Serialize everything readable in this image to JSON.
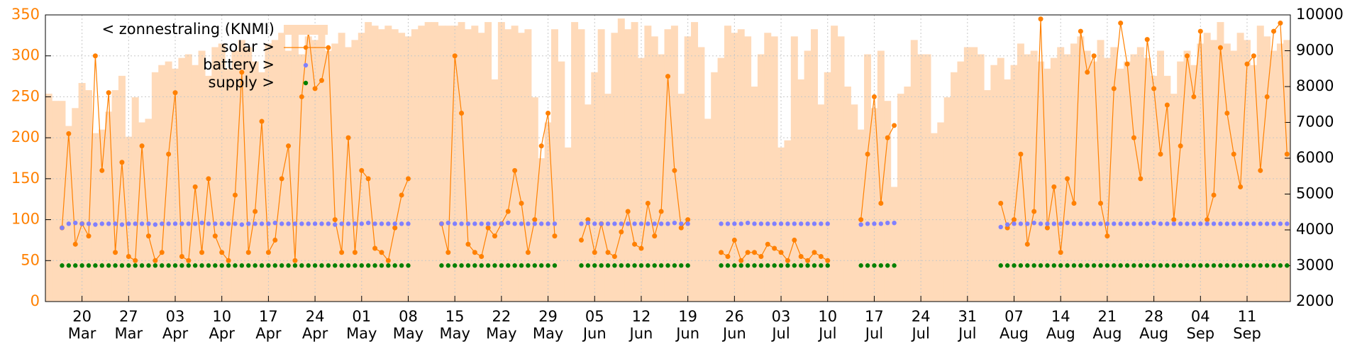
{
  "chart_data": {
    "type": "line",
    "categories": [
      null,
      null,
      null,
      null,
      null,
      "20 Mar",
      null,
      null,
      null,
      null,
      null,
      null,
      "27 Mar",
      null,
      null,
      null,
      null,
      null,
      null,
      "03 Apr",
      null,
      null,
      null,
      null,
      null,
      null,
      "10 Apr",
      null,
      null,
      null,
      null,
      null,
      null,
      "17 Apr",
      null,
      null,
      null,
      null,
      null,
      null,
      "24 Apr",
      null,
      null,
      null,
      null,
      null,
      null,
      "01 May",
      null,
      null,
      null,
      null,
      null,
      null,
      "08 May",
      null,
      null,
      null,
      null,
      null,
      null,
      "15 May",
      null,
      null,
      null,
      null,
      null,
      null,
      "22 May",
      null,
      null,
      null,
      null,
      null,
      null,
      "29 May",
      null,
      null,
      null,
      null,
      null,
      null,
      "05 Jun",
      null,
      null,
      null,
      null,
      null,
      null,
      "12 Jun",
      null,
      null,
      null,
      null,
      null,
      null,
      "19 Jun",
      null,
      null,
      null,
      null,
      null,
      null,
      "26 Jun",
      null,
      null,
      null,
      null,
      null,
      null,
      "03 Jul",
      null,
      null,
      null,
      null,
      null,
      null,
      "10 Jul",
      null,
      null,
      null,
      null,
      null,
      null,
      "17 Jul",
      null,
      null,
      null,
      null,
      null,
      null,
      "24 Jul",
      null,
      null,
      null,
      null,
      null,
      null,
      "31 Jul",
      null,
      null,
      null,
      null,
      null,
      null,
      "07 Aug",
      null,
      null,
      null,
      null,
      null,
      null,
      "14 Aug",
      null,
      null,
      null,
      null,
      null,
      null,
      "21 Aug",
      null,
      null,
      null,
      null,
      null,
      null,
      "28 Aug",
      null,
      null,
      null,
      null,
      null,
      null,
      "04 Sep",
      null,
      null,
      null,
      null,
      null,
      null,
      "11 Sep",
      null,
      null,
      null,
      null,
      null,
      null
    ],
    "series": [
      {
        "name": "< zonnestraling (KNMI)",
        "kind": "area",
        "axis": "y2",
        "color": "#ffdab9",
        "values": [
          7800,
          7600,
          7600,
          6900,
          7400,
          8100,
          7900,
          6700,
          6800,
          7300,
          7900,
          8300,
          6600,
          7700,
          7000,
          7100,
          8400,
          8600,
          8700,
          8500,
          8800,
          8900,
          8600,
          9000,
          8300,
          9100,
          9200,
          8500,
          9000,
          9300,
          9100,
          8700,
          8400,
          9200,
          9300,
          9500,
          9000,
          9600,
          8900,
          9400,
          9300,
          9600,
          9000,
          9200,
          9500,
          9100,
          9300,
          9500,
          9800,
          9700,
          9600,
          9700,
          9600,
          9500,
          9400,
          9600,
          9700,
          9800,
          9800,
          9700,
          9700,
          9700,
          9800,
          9600,
          9700,
          9500,
          9800,
          8200,
          9800,
          9600,
          9700,
          9500,
          9600,
          7700,
          6000,
          7000,
          9600,
          8700,
          6300,
          9800,
          9600,
          7500,
          8400,
          9600,
          7800,
          9500,
          9900,
          9600,
          9800,
          8800,
          9700,
          9400,
          8900,
          9600,
          9700,
          7800,
          9400,
          9800,
          9100,
          7100,
          8400,
          8800,
          9700,
          9500,
          9600,
          9400,
          8000,
          8900,
          9500,
          9400,
          6300,
          6500,
          9400,
          8200,
          9000,
          9600,
          7500,
          8400,
          9700,
          9400,
          8000,
          7500,
          6800,
          8900,
          7400,
          9000,
          7600,
          5200,
          7800,
          8000,
          9300,
          8900,
          8900,
          6700,
          7000,
          7700,
          8400,
          8700,
          9100,
          9100,
          8900,
          7900,
          8600,
          8800,
          8200,
          8600,
          9200,
          8900,
          9000,
          8700,
          8500,
          8800,
          9100,
          8900,
          9200,
          9400,
          9000,
          8700,
          9300,
          8800,
          9100,
          8500,
          8700,
          8900,
          9100,
          8800,
          8300,
          9000,
          8300,
          7800,
          8700,
          9000,
          8600,
          9200,
          9500,
          9300,
          9800,
          9200,
          9000,
          9500,
          9300,
          8600,
          9700,
          9400,
          9000,
          9200,
          9300
        ]
      },
      {
        "name": "solar >",
        "kind": "linespoints",
        "color": "#ff8000",
        "values": [
          null,
          null,
          90,
          205,
          70,
          95,
          80,
          300,
          160,
          255,
          60,
          170,
          55,
          50,
          190,
          80,
          50,
          60,
          180,
          255,
          55,
          50,
          140,
          60,
          150,
          80,
          60,
          50,
          130,
          280,
          60,
          110,
          220,
          60,
          75,
          150,
          190,
          50,
          250,
          330,
          260,
          270,
          310,
          100,
          60,
          200,
          60,
          160,
          150,
          65,
          60,
          50,
          90,
          130,
          150,
          null,
          null,
          null,
          null,
          95,
          60,
          300,
          230,
          70,
          60,
          55,
          90,
          80,
          95,
          110,
          160,
          120,
          60,
          100,
          190,
          230,
          80,
          null,
          null,
          null,
          75,
          100,
          60,
          95,
          60,
          55,
          85,
          110,
          70,
          65,
          120,
          80,
          110,
          275,
          160,
          90,
          100,
          null,
          null,
          null,
          null,
          60,
          55,
          75,
          50,
          60,
          60,
          55,
          70,
          65,
          60,
          50,
          75,
          55,
          50,
          60,
          55,
          50,
          null,
          null,
          null,
          null,
          100,
          180,
          250,
          120,
          200,
          215,
          null,
          null,
          null,
          null,
          null,
          null,
          null,
          null,
          null,
          null,
          null,
          null,
          null,
          null,
          null,
          120,
          90,
          100,
          180,
          70,
          110,
          345,
          90,
          140,
          60,
          150,
          120,
          330,
          280,
          300,
          120,
          80,
          260,
          340,
          290,
          200,
          150,
          320,
          260,
          180,
          240,
          100,
          190,
          300,
          250,
          330,
          100,
          130,
          310,
          230,
          180,
          140,
          290,
          300,
          160,
          250,
          330,
          340,
          180
        ]
      },
      {
        "name": "battery >",
        "kind": "points",
        "color": "#8080ff",
        "values": [
          null,
          null,
          90,
          95,
          96,
          95,
          95,
          94,
          95,
          95,
          95,
          94,
          95,
          95,
          95,
          95,
          94,
          95,
          95,
          95,
          95,
          95,
          95,
          96,
          95,
          95,
          95,
          95,
          95,
          94,
          95,
          95,
          95,
          95,
          96,
          95,
          95,
          95,
          95,
          95,
          95,
          95,
          95,
          94,
          95,
          95,
          95,
          95,
          96,
          95,
          95,
          95,
          95,
          95,
          95,
          null,
          null,
          null,
          null,
          95,
          96,
          95,
          95,
          95,
          95,
          95,
          95,
          95,
          95,
          96,
          95,
          95,
          95,
          95,
          95,
          95,
          95,
          null,
          null,
          null,
          95,
          96,
          95,
          95,
          95,
          95,
          95,
          95,
          95,
          95,
          95,
          95,
          95,
          95,
          96,
          95,
          95,
          null,
          null,
          null,
          null,
          95,
          95,
          95,
          95,
          96,
          95,
          95,
          95,
          95,
          95,
          95,
          95,
          95,
          95,
          95,
          95,
          95,
          null,
          null,
          null,
          null,
          94,
          95,
          95,
          95,
          96,
          96,
          null,
          null,
          null,
          null,
          null,
          null,
          null,
          null,
          null,
          null,
          null,
          null,
          null,
          null,
          null,
          91,
          94,
          95,
          95,
          95,
          96,
          95,
          95,
          95,
          95,
          96,
          95,
          95,
          95,
          95,
          95,
          95,
          95,
          95,
          95,
          95,
          95,
          95,
          96,
          95,
          95,
          95,
          95,
          95,
          95,
          95,
          95,
          95,
          95,
          95,
          95,
          95,
          95,
          95,
          95,
          95,
          95,
          95,
          95
        ]
      },
      {
        "name": "supply >",
        "kind": "points",
        "color": "#008000",
        "values": [
          null,
          null,
          44,
          44,
          44,
          44,
          44,
          44,
          44,
          44,
          44,
          44,
          44,
          44,
          44,
          44,
          44,
          44,
          44,
          44,
          44,
          44,
          44,
          44,
          44,
          44,
          44,
          44,
          44,
          44,
          44,
          44,
          44,
          44,
          44,
          44,
          44,
          44,
          44,
          44,
          44,
          44,
          44,
          44,
          44,
          44,
          44,
          44,
          44,
          44,
          44,
          44,
          44,
          44,
          44,
          null,
          null,
          null,
          null,
          44,
          44,
          44,
          44,
          44,
          44,
          44,
          44,
          44,
          44,
          44,
          44,
          44,
          44,
          44,
          44,
          44,
          44,
          null,
          null,
          null,
          44,
          44,
          44,
          44,
          44,
          44,
          44,
          44,
          44,
          44,
          44,
          44,
          44,
          44,
          44,
          44,
          44,
          null,
          null,
          null,
          null,
          44,
          44,
          44,
          44,
          44,
          44,
          44,
          44,
          44,
          44,
          44,
          44,
          44,
          44,
          44,
          44,
          44,
          null,
          null,
          null,
          null,
          44,
          44,
          44,
          44,
          44,
          44,
          null,
          null,
          null,
          null,
          null,
          null,
          null,
          null,
          null,
          null,
          null,
          null,
          null,
          null,
          null,
          44,
          44,
          44,
          44,
          44,
          44,
          44,
          44,
          44,
          44,
          44,
          44,
          44,
          44,
          44,
          44,
          44,
          44,
          44,
          44,
          44,
          44,
          44,
          44,
          44,
          44,
          44,
          44,
          44,
          44,
          44,
          44,
          44,
          44,
          44,
          44,
          44,
          44,
          44,
          44,
          44,
          44,
          44,
          44
        ]
      }
    ],
    "ylim": [
      0,
      350
    ],
    "yticks": [
      0,
      50,
      100,
      150,
      200,
      250,
      300,
      350
    ],
    "ytick_color": "#ff8000",
    "y2lim": [
      2000,
      10000
    ],
    "y2ticks": [
      2000,
      3000,
      4000,
      5000,
      6000,
      7000,
      8000,
      9000,
      10000
    ],
    "grid": true,
    "legend": "top-left"
  }
}
